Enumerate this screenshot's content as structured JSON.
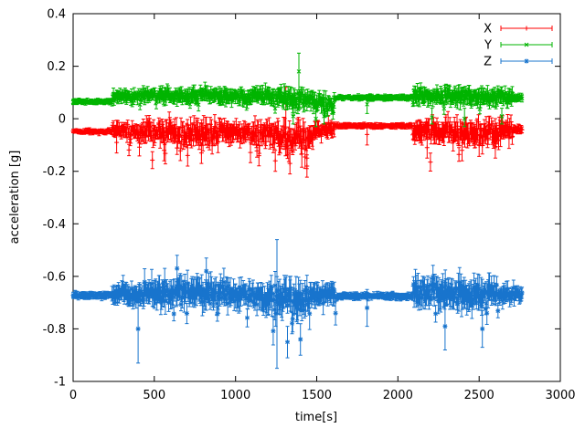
{
  "figure": {
    "background": "#ffffff",
    "border_color": "#000000",
    "text_color": "#000000"
  },
  "chart_data": {
    "type": "scatter",
    "style": "yerrorbars",
    "title": "",
    "xlabel": "time[s]",
    "ylabel": "acceleration [g]",
    "xlim": [
      0,
      3000
    ],
    "ylim": [
      -1,
      0.4
    ],
    "grid": false,
    "xticks": {
      "values": [
        0,
        500,
        1000,
        1500,
        2000,
        2500,
        3000
      ],
      "labels": [
        "0",
        "500",
        "1000",
        "1500",
        "2000",
        "2500",
        "3000"
      ]
    },
    "yticks": {
      "values": [
        -1,
        -0.8,
        -0.6,
        -0.4,
        -0.2,
        0,
        0.2,
        0.4
      ],
      "labels": [
        "-1",
        "-0.8",
        "-0.6",
        "-0.4",
        "-0.2",
        "0",
        "0.2",
        "0.4"
      ]
    },
    "legend": {
      "position": "top-right",
      "entries": [
        "X",
        "Y",
        "Z"
      ]
    },
    "sampling": {
      "t_start": 0,
      "t_end": 2764,
      "step_s": 4,
      "seed": 42
    },
    "segment_format": [
      "t0",
      "t1",
      "mean_g",
      "noise_sd_g",
      "errorbar_halfwidth_g"
    ],
    "event_format": [
      "t",
      "y",
      "err_low",
      "err_high"
    ],
    "series": [
      {
        "name": "X",
        "color": "#ff0000",
        "marker": "plus",
        "spike_prob": 0.06,
        "spike_dir": -1,
        "spike_scale": 2.2,
        "segments": [
          [
            0,
            240,
            -0.048,
            0.006,
            0.008
          ],
          [
            240,
            330,
            -0.042,
            0.02,
            0.02
          ],
          [
            330,
            430,
            -0.05,
            0.03,
            0.025
          ],
          [
            430,
            640,
            -0.05,
            0.035,
            0.03
          ],
          [
            640,
            900,
            -0.06,
            0.042,
            0.032
          ],
          [
            900,
            1090,
            -0.045,
            0.03,
            0.028
          ],
          [
            1090,
            1260,
            -0.055,
            0.04,
            0.032
          ],
          [
            1260,
            1480,
            -0.075,
            0.05,
            0.035
          ],
          [
            1480,
            1610,
            -0.04,
            0.025,
            0.022
          ],
          [
            1610,
            2090,
            -0.027,
            0.005,
            0.008
          ],
          [
            2090,
            2330,
            -0.048,
            0.035,
            0.03
          ],
          [
            2330,
            2530,
            -0.055,
            0.04,
            0.032
          ],
          [
            2530,
            2710,
            -0.048,
            0.035,
            0.03
          ],
          [
            2710,
            2765,
            -0.04,
            0.01,
            0.012
          ]
        ],
        "events": [
          [
            268,
            -0.09,
            -0.13,
            -0.05
          ],
          [
            560,
            -0.12,
            -0.16,
            -0.08
          ],
          [
            705,
            -0.14,
            -0.18,
            -0.1
          ],
          [
            790,
            -0.13,
            -0.17,
            -0.09
          ],
          [
            1245,
            -0.16,
            -0.2,
            -0.12
          ],
          [
            1310,
            0.06,
            -0.06,
            0.12
          ],
          [
            1335,
            -0.17,
            -0.21,
            -0.13
          ],
          [
            1440,
            -0.15,
            -0.19,
            -0.11
          ],
          [
            1810,
            -0.06,
            -0.1,
            -0.02
          ],
          [
            2180,
            -0.11,
            -0.15,
            -0.07
          ],
          [
            2395,
            -0.12,
            -0.16,
            -0.08
          ],
          [
            2600,
            -0.11,
            -0.15,
            -0.07
          ]
        ]
      },
      {
        "name": "Y",
        "color": "#00b400",
        "marker": "cross",
        "spike_prob": 0.05,
        "spike_dir": -1,
        "spike_scale": 2.0,
        "segments": [
          [
            0,
            240,
            0.065,
            0.006,
            0.008
          ],
          [
            240,
            430,
            0.085,
            0.018,
            0.018
          ],
          [
            430,
            900,
            0.09,
            0.02,
            0.02
          ],
          [
            900,
            1260,
            0.085,
            0.024,
            0.022
          ],
          [
            1260,
            1480,
            0.075,
            0.032,
            0.026
          ],
          [
            1480,
            1610,
            0.06,
            0.028,
            0.022
          ],
          [
            1610,
            2090,
            0.08,
            0.005,
            0.008
          ],
          [
            2090,
            2710,
            0.085,
            0.026,
            0.024
          ],
          [
            2710,
            2765,
            0.08,
            0.01,
            0.012
          ]
        ],
        "events": [
          [
            1355,
            0.01,
            -0.02,
            0.04
          ],
          [
            1390,
            0.18,
            0.1,
            0.25
          ],
          [
            1495,
            0.0,
            -0.03,
            0.04
          ],
          [
            1545,
            0.01,
            -0.02,
            0.04
          ],
          [
            1810,
            0.055,
            0.02,
            0.09
          ],
          [
            2210,
            0.005,
            -0.02,
            0.04
          ],
          [
            2410,
            0.0,
            -0.03,
            0.04
          ],
          [
            2640,
            0.01,
            -0.02,
            0.04
          ]
        ]
      },
      {
        "name": "Z",
        "color": "#1874cd",
        "marker": "star",
        "spike_prob": 0.06,
        "spike_dir": -1,
        "spike_scale": 2.0,
        "segments": [
          [
            0,
            240,
            -0.672,
            0.007,
            0.01
          ],
          [
            240,
            430,
            -0.668,
            0.032,
            0.028
          ],
          [
            430,
            950,
            -0.66,
            0.045,
            0.038
          ],
          [
            950,
            1160,
            -0.668,
            0.04,
            0.034
          ],
          [
            1160,
            1460,
            -0.685,
            0.055,
            0.042
          ],
          [
            1460,
            1620,
            -0.67,
            0.04,
            0.034
          ],
          [
            1620,
            2090,
            -0.675,
            0.007,
            0.01
          ],
          [
            2090,
            2360,
            -0.66,
            0.045,
            0.038
          ],
          [
            2360,
            2610,
            -0.665,
            0.05,
            0.04
          ],
          [
            2610,
            2765,
            -0.672,
            0.028,
            0.024
          ]
        ],
        "events": [
          [
            400,
            -0.8,
            -0.93,
            -0.67
          ],
          [
            640,
            -0.57,
            -0.62,
            -0.52
          ],
          [
            820,
            -0.58,
            -0.63,
            -0.53
          ],
          [
            1255,
            -0.7,
            -0.95,
            -0.46
          ],
          [
            1320,
            -0.85,
            -0.91,
            -0.79
          ],
          [
            1400,
            -0.84,
            -0.9,
            -0.78
          ],
          [
            1810,
            -0.72,
            -0.79,
            -0.65
          ],
          [
            2290,
            -0.79,
            -0.88,
            -0.7
          ],
          [
            2520,
            -0.8,
            -0.87,
            -0.73
          ]
        ]
      }
    ]
  }
}
